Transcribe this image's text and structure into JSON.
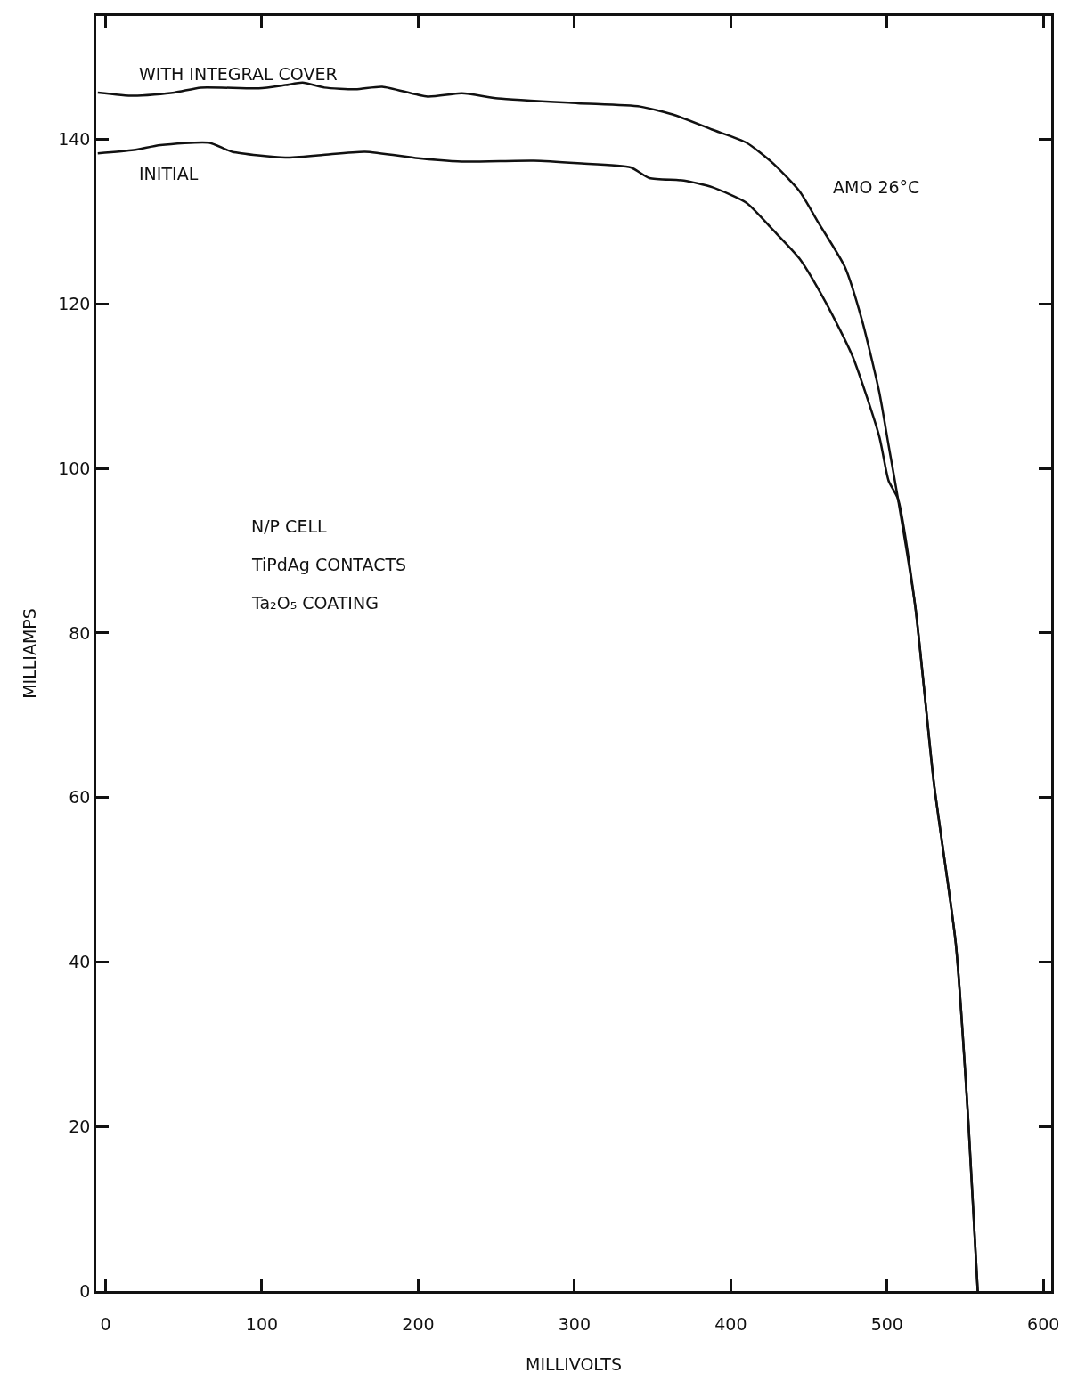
{
  "chart_data": {
    "type": "line",
    "xlabel": "MILLIVOLTS",
    "ylabel": "MILLIAMPS",
    "xlim": [
      -6,
      605
    ],
    "xticks": [
      0,
      100,
      200,
      300,
      400,
      500,
      600
    ],
    "ylim": [
      0,
      155
    ],
    "yticks": [
      0,
      20,
      40,
      60,
      80,
      100,
      120,
      140
    ],
    "grid": false,
    "legend": false,
    "marker": "none",
    "line_style": "solid",
    "series": [
      {
        "name": "WITH INTEGRAL COVER",
        "color": "#111111",
        "x": [
          -5,
          18,
          44,
          61,
          98,
          115,
          126,
          140,
          160,
          177,
          206,
          228,
          251,
          302,
          342,
          365,
          388,
          410,
          427,
          444,
          456,
          473,
          484,
          495,
          501,
          507,
          518,
          530,
          544,
          552,
          558
        ],
        "values": [
          145.7,
          145.3,
          145.7,
          146.3,
          146.2,
          146.6,
          146.9,
          146.3,
          146.1,
          146.4,
          145.2,
          145.6,
          145,
          144.4,
          144,
          142.9,
          141.2,
          139.6,
          137.1,
          133.7,
          129.9,
          124.5,
          118,
          109.3,
          102.8,
          96.3,
          83.3,
          61.7,
          42.2,
          20.6,
          0
        ]
      },
      {
        "name": "INITIAL",
        "color": "#111111",
        "x": [
          -5,
          18,
          35,
          66,
          81,
          115,
          138,
          166,
          200,
          228,
          274,
          302,
          336,
          348,
          370,
          388,
          410,
          427,
          444,
          461,
          478,
          495,
          501,
          507,
          518,
          530,
          544,
          552,
          558
        ],
        "values": [
          138.3,
          138.7,
          139.3,
          139.6,
          138.5,
          137.8,
          138.1,
          138.5,
          137.7,
          137.3,
          137.4,
          137.1,
          136.6,
          135.3,
          135,
          134.2,
          132.3,
          129,
          125.5,
          120.1,
          113.6,
          103.9,
          98.5,
          96.3,
          83.3,
          61.7,
          42.2,
          20.6,
          0
        ]
      }
    ],
    "annotations": [
      "AMO 26°C",
      "N/P CELL",
      "TiPdAg CONTACTS",
      "Ta₂O₅ COATING"
    ]
  }
}
